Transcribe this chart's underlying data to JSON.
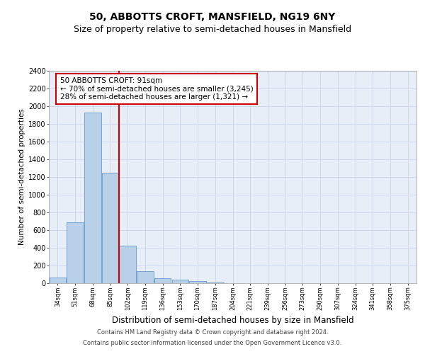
{
  "title": "50, ABBOTTS CROFT, MANSFIELD, NG19 6NY",
  "subtitle": "Size of property relative to semi-detached houses in Mansfield",
  "xlabel": "Distribution of semi-detached houses by size in Mansfield",
  "ylabel": "Number of semi-detached properties",
  "categories": [
    "34sqm",
    "51sqm",
    "68sqm",
    "85sqm",
    "102sqm",
    "119sqm",
    "136sqm",
    "153sqm",
    "170sqm",
    "187sqm",
    "204sqm",
    "221sqm",
    "239sqm",
    "256sqm",
    "273sqm",
    "290sqm",
    "307sqm",
    "324sqm",
    "341sqm",
    "358sqm",
    "375sqm"
  ],
  "values": [
    65,
    690,
    1930,
    1250,
    425,
    140,
    55,
    40,
    25,
    10,
    0,
    0,
    0,
    0,
    0,
    0,
    0,
    0,
    0,
    0,
    0
  ],
  "bar_color": "#b8d0e8",
  "bar_edge_color": "#6699cc",
  "annotation_text": "50 ABBOTTS CROFT: 91sqm\n← 70% of semi-detached houses are smaller (3,245)\n28% of semi-detached houses are larger (1,321) →",
  "annotation_box_color": "#ffffff",
  "annotation_box_edge": "#cc0000",
  "vline_color": "#cc0000",
  "ylim": [
    0,
    2400
  ],
  "yticks": [
    0,
    200,
    400,
    600,
    800,
    1000,
    1200,
    1400,
    1600,
    1800,
    2000,
    2200,
    2400
  ],
  "grid_color": "#c8d4e8",
  "background_color": "#e8eef8",
  "footer_line1": "Contains HM Land Registry data © Crown copyright and database right 2024.",
  "footer_line2": "Contains public sector information licensed under the Open Government Licence v3.0.",
  "title_fontsize": 10,
  "subtitle_fontsize": 9,
  "xlabel_fontsize": 8.5,
  "ylabel_fontsize": 7.5,
  "annotation_fontsize": 7.5,
  "footer_fontsize": 6.0
}
